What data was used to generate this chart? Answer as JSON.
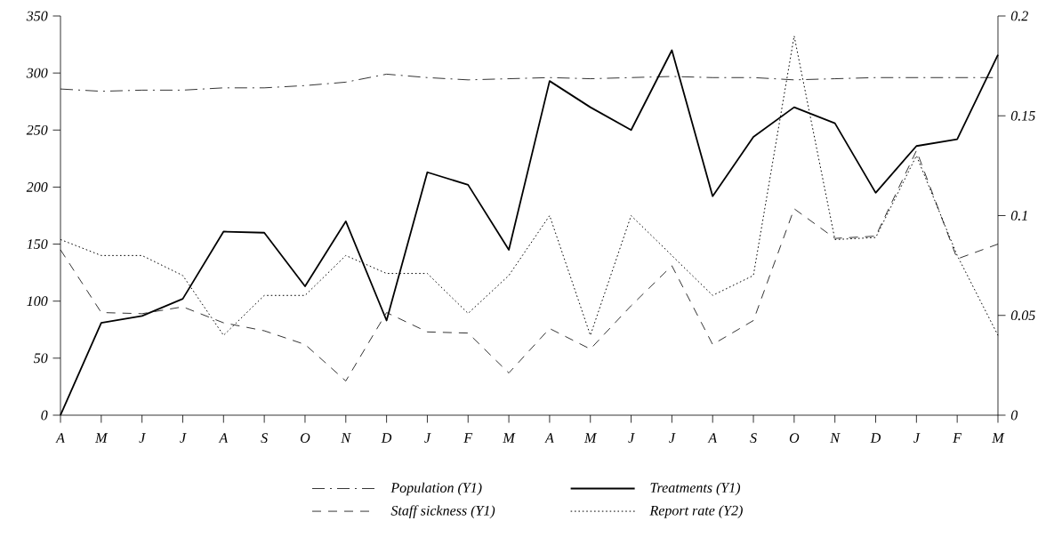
{
  "chart_data": {
    "type": "line",
    "categories": [
      "A",
      "M",
      "J",
      "J",
      "A",
      "S",
      "O",
      "N",
      "D",
      "J",
      "F",
      "M",
      "A",
      "M",
      "J",
      "J",
      "A",
      "S",
      "O",
      "N",
      "D",
      "J",
      "F",
      "M"
    ],
    "series": [
      {
        "name": "Population (Y1)",
        "color": "#000000",
        "line_style": "dashdot",
        "axis": "y",
        "values": [
          286,
          284,
          285,
          285,
          287,
          287,
          289,
          292,
          299,
          296,
          294,
          295,
          296,
          295,
          296,
          297,
          296,
          296,
          294,
          295,
          296,
          296,
          296,
          296
        ]
      },
      {
        "name": "Treatments (Y1)",
        "color": "#000000",
        "line_style": "solid",
        "axis": "y",
        "values": [
          0,
          81,
          87,
          102,
          161,
          160,
          113,
          170,
          83,
          213,
          202,
          145,
          293,
          270,
          250,
          320,
          192,
          244,
          270,
          256,
          195,
          236,
          242,
          316
        ]
      },
      {
        "name": "Staff sickness (Y1)",
        "color": "#000000",
        "line_style": "dashed",
        "axis": "y",
        "values": [
          145,
          90,
          89,
          95,
          81,
          74,
          62,
          30,
          90,
          73,
          72,
          37,
          76,
          58,
          96,
          131,
          62,
          83,
          181,
          155,
          157,
          232,
          137,
          150
        ]
      },
      {
        "name": "Report rate (Y2)",
        "color": "#000000",
        "line_style": "dotted",
        "axis": "y2",
        "values": [
          0.088,
          0.08,
          0.08,
          0.07,
          0.04,
          0.06,
          0.06,
          0.08,
          0.071,
          0.071,
          0.051,
          0.07,
          0.1,
          0.04,
          0.1,
          0.08,
          0.06,
          0.07,
          0.19,
          0.088,
          0.089,
          0.13,
          0.08,
          0.04
        ]
      }
    ],
    "ylim": [
      0,
      350
    ],
    "yticks": [
      0,
      50,
      100,
      150,
      200,
      250,
      300,
      350
    ],
    "y2lim": [
      0,
      0.2
    ],
    "y2ticks": [
      0,
      0.05,
      0.1,
      0.15,
      0.2
    ],
    "legend": "bottom",
    "grid": false,
    "marker": "none"
  }
}
